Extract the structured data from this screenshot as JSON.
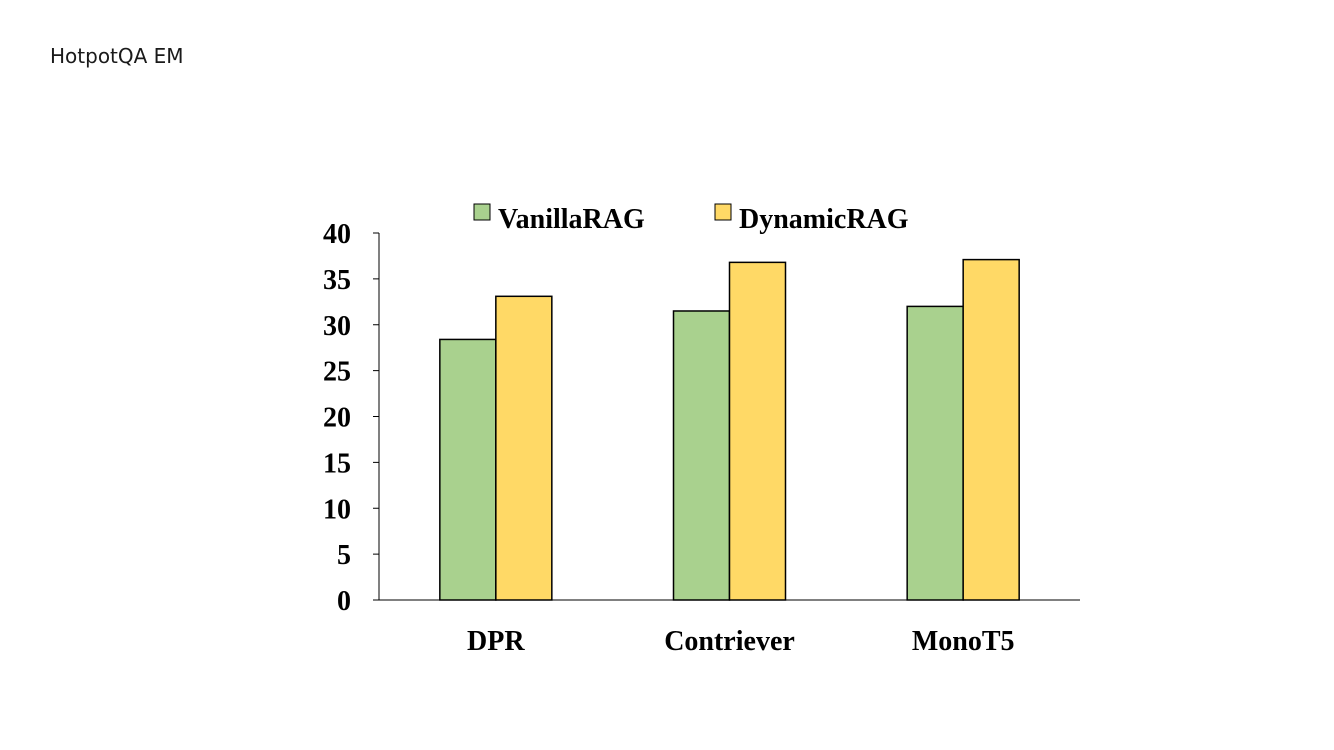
{
  "page": {
    "label": "HotpotQA EM"
  },
  "chart_data": {
    "type": "bar",
    "categories": [
      "DPR",
      "Contriever",
      "MonoT5"
    ],
    "series": [
      {
        "name": "VanillaRAG",
        "values": [
          28.4,
          31.5,
          32.0
        ],
        "color": "#a9d18e"
      },
      {
        "name": "DynamicRAG",
        "values": [
          33.1,
          36.8,
          37.1
        ],
        "color": "#ffd966"
      }
    ],
    "title": "",
    "xlabel": "",
    "ylabel": "",
    "ylim": [
      0,
      40
    ],
    "yticks": [
      0,
      5,
      10,
      15,
      20,
      25,
      30,
      35,
      40
    ],
    "grid": false,
    "legend_position": "top-center"
  }
}
